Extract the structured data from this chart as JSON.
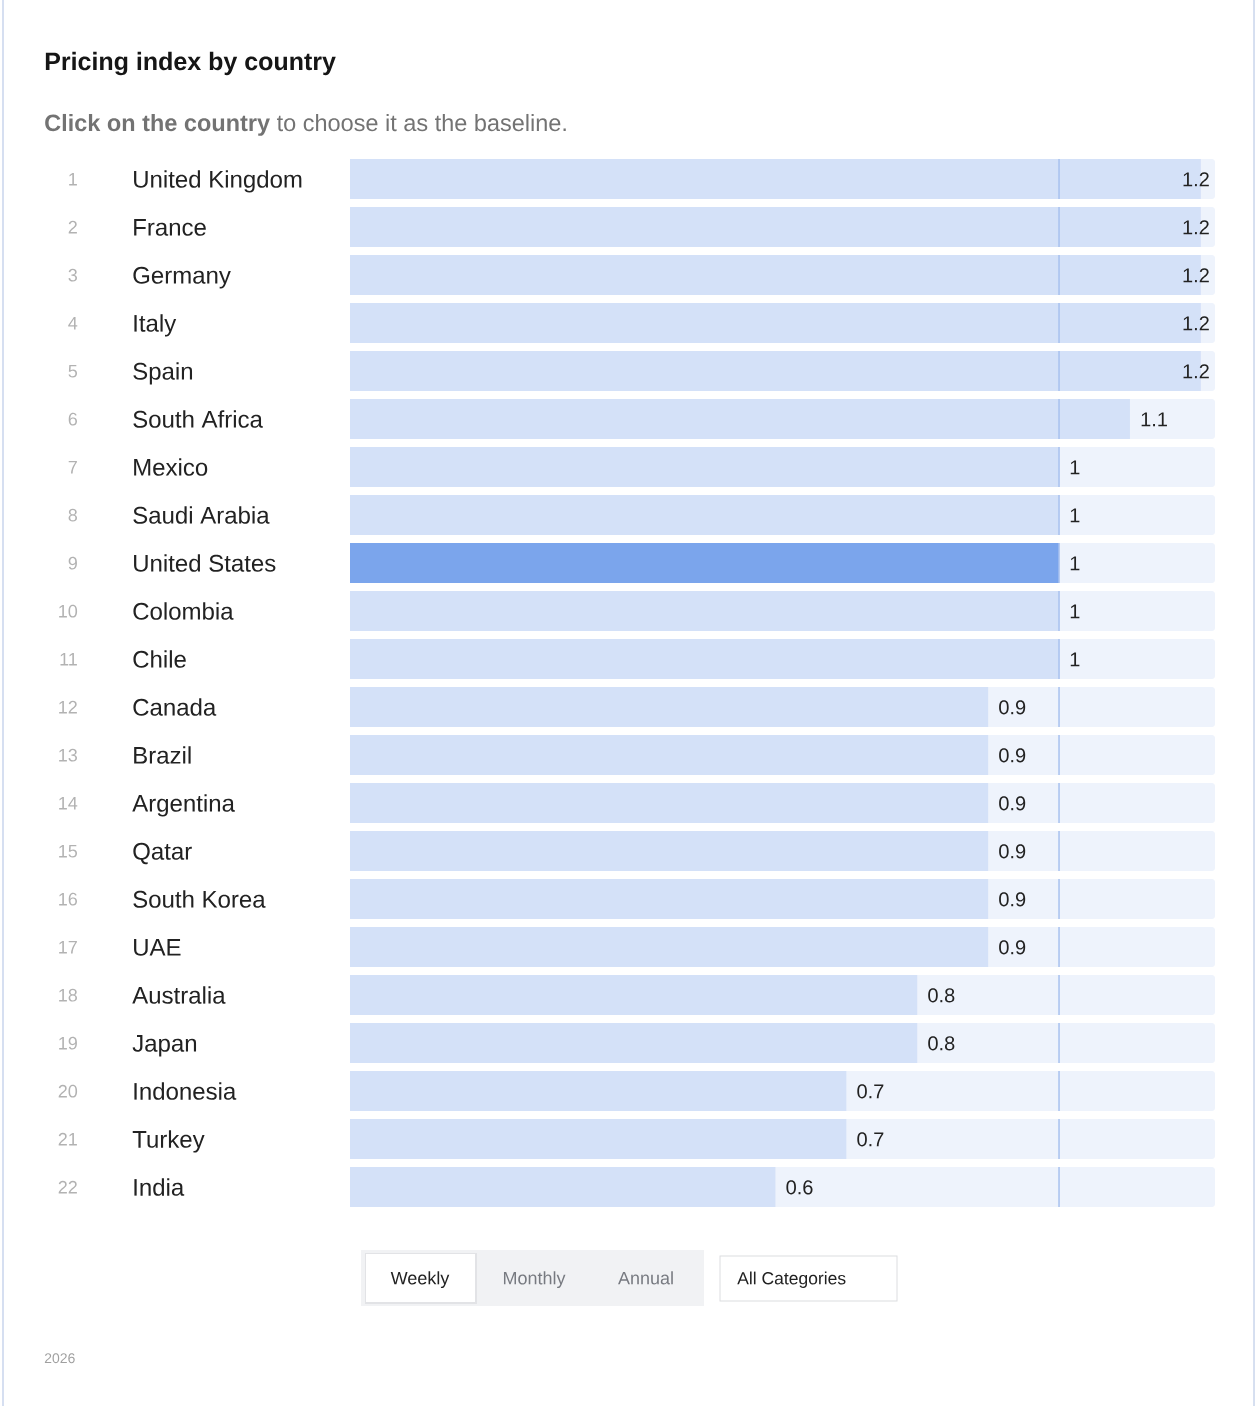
{
  "chart_data": {
    "type": "bar",
    "orientation": "horizontal",
    "title": "Pricing index by country",
    "subtitle": "**Click on the country** to choose it as the baseline.",
    "categories": [
      "United Kingdom",
      "France",
      "Germany",
      "Italy",
      "Spain",
      "South Africa",
      "Mexico",
      "Saudi Arabia",
      "United States",
      "Colombia",
      "Chile",
      "Canada",
      "Brazil",
      "Argentina",
      "Qatar",
      "South Korea",
      "UAE",
      "Australia",
      "Japan",
      "Indonesia",
      "Turkey",
      "India"
    ],
    "values": [
      1.2,
      1.2,
      1.2,
      1.2,
      1.2,
      1.1,
      1,
      1,
      1,
      1,
      1,
      0.9,
      0.9,
      0.9,
      0.9,
      0.9,
      0.9,
      0.8,
      0.8,
      0.7,
      0.7,
      0.6
    ],
    "colors": [
      "#d4e1f8",
      "#d4e1f8",
      "#d4e1f8",
      "#d4e1f8",
      "#d4e1f8",
      "#d4e1f8",
      "#d4e1f8",
      "#d4e1f8",
      "#7ba5ec",
      "#d4e1f8",
      "#d4e1f8",
      "#d4e1f8",
      "#d4e1f8",
      "#d4e1f8",
      "#d4e1f8",
      "#d4e1f8",
      "#d4e1f8",
      "#d4e1f8",
      "#d4e1f8",
      "#d4e1f8",
      "#d4e1f8",
      "#d4e1f8"
    ],
    "data_labels": true,
    "xlim": [
      0,
      1.22
    ],
    "ref_lines": [
      {
        "axis": "x",
        "value": 1,
        "color": "#a8c1ef"
      }
    ],
    "tick_labels": "y",
    "annotations": [
      "1",
      "2",
      "3",
      "4",
      "5",
      "6",
      "7",
      "8",
      "9",
      "10",
      "11",
      "12",
      "13",
      "14",
      "15",
      "16",
      "17",
      "18",
      "19",
      "20",
      "21",
      "22",
      "Weekly",
      "Monthly",
      "Annual",
      "All Categories",
      "2026"
    ]
  }
}
